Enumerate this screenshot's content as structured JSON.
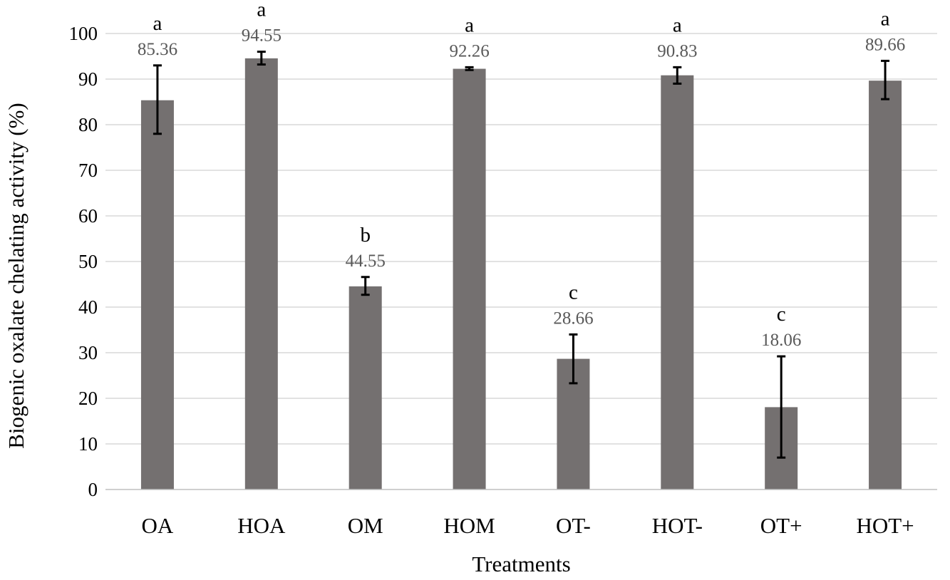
{
  "chart_data": {
    "type": "bar",
    "title": "",
    "xlabel": "Treatments",
    "ylabel": "Biogenic oxalate chelating activity (%)",
    "ylim": [
      0,
      100
    ],
    "yticks": [
      0,
      10,
      20,
      30,
      40,
      50,
      60,
      70,
      80,
      90,
      100
    ],
    "grid": true,
    "legend": "none",
    "bar_color": "#747070",
    "categories": [
      "OA",
      "HOA",
      "OM",
      "HOM",
      "OT-",
      "HOT-",
      "OT+",
      "HOT+"
    ],
    "values": [
      85.36,
      94.55,
      44.55,
      92.26,
      28.66,
      90.83,
      18.06,
      89.66
    ],
    "value_labels": [
      "85.36",
      "94.55",
      "44.55",
      "92.26",
      "28.66",
      "90.83",
      "18.06",
      "89.66"
    ],
    "error_bars": [
      [
        78,
        93
      ],
      [
        93.2,
        96
      ],
      [
        42.7,
        46.6
      ],
      [
        92,
        92.6
      ],
      [
        23.3,
        34
      ],
      [
        89,
        92.6
      ],
      [
        7,
        29.2
      ],
      [
        85.6,
        94
      ]
    ],
    "significance_letters": [
      "a",
      "a",
      "b",
      "a",
      "c",
      "a",
      "c",
      "a"
    ]
  }
}
